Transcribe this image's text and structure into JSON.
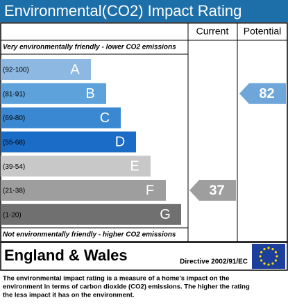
{
  "header": {
    "title": "Environmental(CO2) Impact Rating"
  },
  "columns": {
    "current": "Current",
    "potential": "Potential"
  },
  "top_note": "Very environmentally friendly - lower CO2 emissions",
  "bottom_note": "Not environmentally friendly - higher CO2 emissions",
  "bands": [
    {
      "range": "(92-100)",
      "letter": "A",
      "color": "#8cb8e2"
    },
    {
      "range": "(81-91)",
      "letter": "B",
      "color": "#5ea2dc"
    },
    {
      "range": "(69-80)",
      "letter": "C",
      "color": "#3a88d2"
    },
    {
      "range": "(55-68)",
      "letter": "D",
      "color": "#1a6cc6"
    },
    {
      "range": "(39-54)",
      "letter": "E",
      "color": "#c8c8c8"
    },
    {
      "range": "(21-38)",
      "letter": "F",
      "color": "#9e9e9e"
    },
    {
      "range": "(1-20)",
      "letter": "G",
      "color": "#707070"
    }
  ],
  "current": {
    "value": "37",
    "color": "#9e9e9e"
  },
  "potential": {
    "value": "82",
    "color": "#6ea6da"
  },
  "footer": {
    "region": "England & Wales",
    "directive": "Directive 2002/91/EC"
  },
  "description": [
    "The environmental impact rating is a measure of a home's impact on the",
    "environment in terms of carbon dioxide (CO2) emissions. The higher the rating",
    "the less impact it has on the environment."
  ]
}
